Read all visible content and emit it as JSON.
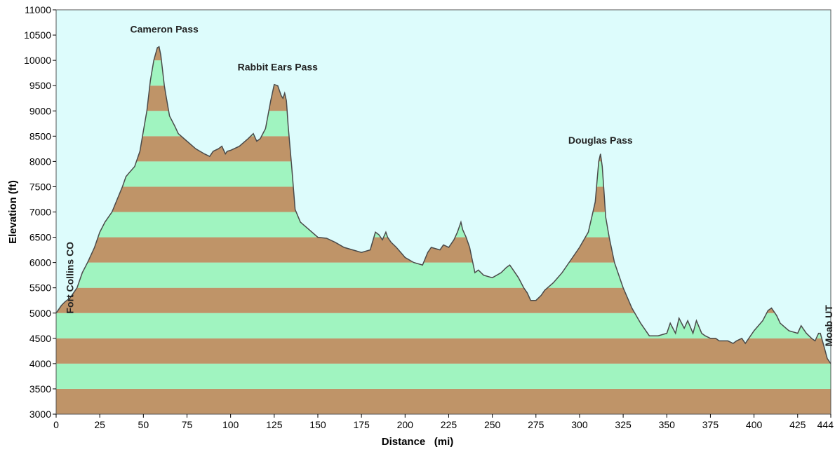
{
  "chart_data": {
    "type": "area",
    "title": "",
    "xlabel": "Distance   (mi)",
    "ylabel": "Elevation  (ft)",
    "xlim": [
      0,
      444
    ],
    "ylim": [
      3000,
      11000
    ],
    "x_ticks": [
      "0",
      "25",
      "50",
      "75",
      "100",
      "125",
      "150",
      "175",
      "200",
      "225",
      "250",
      "275",
      "300",
      "325",
      "350",
      "375",
      "400",
      "425",
      "444"
    ],
    "y_ticks": [
      "3000",
      "3500",
      "4000",
      "4500",
      "5000",
      "5500",
      "6000",
      "6500",
      "7000",
      "7500",
      "8000",
      "8500",
      "9000",
      "9500",
      "10000",
      "10500",
      "11000"
    ],
    "band_colors": [
      "#bf9468",
      "#a0f4c0"
    ],
    "background_color": "#ddfcfc",
    "line_color": "#4a4a4a",
    "grid": false,
    "annotations": [
      {
        "text": "Cameron Pass",
        "x": 62,
        "y": 10550
      },
      {
        "text": "Rabbit Ears Pass",
        "x": 127,
        "y": 9800
      },
      {
        "text": "Douglas Pass",
        "x": 312,
        "y": 8350
      },
      {
        "text": "Fort Collins CO",
        "x": 5,
        "y": 5700,
        "rotated": true
      },
      {
        "text": "Moab UT",
        "x": 440,
        "y": 4750,
        "rotated": true
      }
    ],
    "series": [
      {
        "x": [
          0,
          3,
          5,
          8,
          12,
          15,
          18,
          22,
          25,
          28,
          32,
          35,
          38,
          40,
          42,
          45,
          48,
          50,
          52,
          54,
          56,
          58,
          59,
          60,
          61,
          62,
          63,
          65,
          68,
          70,
          75,
          80,
          85,
          88,
          90,
          93,
          95,
          97,
          98,
          100,
          105,
          110,
          113,
          115,
          117,
          120,
          123,
          125,
          127,
          129,
          130,
          131,
          132,
          133,
          135,
          137,
          140,
          145,
          150,
          155,
          160,
          165,
          170,
          175,
          180,
          183,
          185,
          187,
          189,
          190,
          192,
          195,
          200,
          205,
          210,
          213,
          215,
          220,
          222,
          225,
          228,
          230,
          232,
          233,
          235,
          237,
          240,
          242,
          245,
          250,
          255,
          258,
          260,
          262,
          265,
          268,
          270,
          272,
          275,
          278,
          280,
          285,
          290,
          295,
          300,
          305,
          307,
          309,
          310,
          311,
          312,
          313,
          314,
          315,
          317,
          320,
          325,
          330,
          335,
          340,
          345,
          350,
          352,
          355,
          357,
          360,
          362,
          365,
          367,
          370,
          372,
          375,
          378,
          380,
          385,
          388,
          390,
          393,
          395,
          400,
          405,
          408,
          410,
          413,
          415,
          420,
          425,
          427,
          430,
          433,
          435,
          437,
          438,
          440,
          442,
          444
        ],
        "y": [
          5000,
          5150,
          5220,
          5300,
          5500,
          5800,
          6000,
          6300,
          6600,
          6800,
          7000,
          7250,
          7500,
          7700,
          7780,
          7900,
          8200,
          8600,
          9000,
          9600,
          10000,
          10250,
          10270,
          10100,
          9800,
          9500,
          9300,
          8900,
          8700,
          8550,
          8400,
          8250,
          8150,
          8100,
          8200,
          8250,
          8300,
          8150,
          8200,
          8220,
          8300,
          8450,
          8550,
          8400,
          8450,
          8650,
          9200,
          9520,
          9500,
          9300,
          9250,
          9350,
          9200,
          8700,
          7900,
          7050,
          6800,
          6650,
          6500,
          6480,
          6400,
          6300,
          6250,
          6200,
          6250,
          6600,
          6550,
          6450,
          6600,
          6500,
          6400,
          6300,
          6100,
          6000,
          5950,
          6200,
          6300,
          6250,
          6350,
          6300,
          6450,
          6600,
          6800,
          6650,
          6500,
          6300,
          5800,
          5850,
          5750,
          5700,
          5800,
          5900,
          5950,
          5850,
          5700,
          5500,
          5400,
          5250,
          5250,
          5350,
          5450,
          5600,
          5800,
          6050,
          6300,
          6600,
          6900,
          7200,
          7600,
          8000,
          8150,
          7900,
          7400,
          6900,
          6500,
          6000,
          5500,
          5100,
          4800,
          4550,
          4550,
          4600,
          4800,
          4600,
          4900,
          4700,
          4850,
          4600,
          4850,
          4600,
          4550,
          4500,
          4500,
          4450,
          4450,
          4400,
          4450,
          4500,
          4400,
          4650,
          4850,
          5050,
          5100,
          4950,
          4800,
          4650,
          4600,
          4750,
          4600,
          4500,
          4450,
          4600,
          4600,
          4350,
          4100,
          4000
        ]
      }
    ]
  }
}
